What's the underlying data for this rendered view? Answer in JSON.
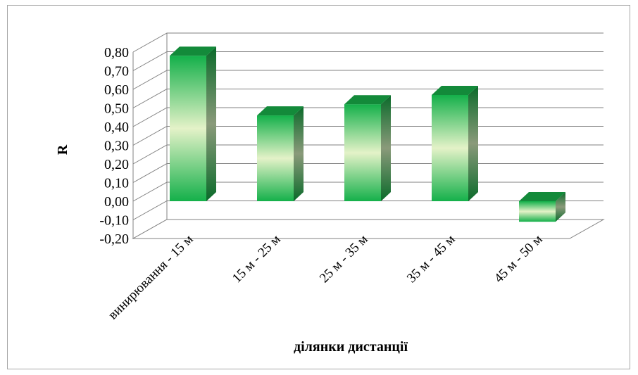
{
  "chart_data": {
    "type": "bar",
    "style": "3d-column",
    "categories": [
      "винирювання - 15 м",
      "15 м - 25 м",
      "25 м - 35 м",
      "35 м - 45 м",
      "45 м - 50  м"
    ],
    "values": [
      0.78,
      0.46,
      0.52,
      0.57,
      -0.11
    ],
    "title": "",
    "xlabel": "ділянки дистанції",
    "ylabel": "R",
    "ylim": [
      -0.2,
      0.8
    ],
    "ytick_step": 0.1,
    "yticks": [
      "-0,20",
      "-0,10",
      "0,00",
      "0,10",
      "0,20",
      "0,30",
      "0,40",
      "0,50",
      "0,60",
      "0,70",
      "0,80"
    ],
    "grid": true,
    "legend": "none",
    "colors": {
      "bar_dark": "#14b04a",
      "bar_light": "#e4f2c8",
      "bar_side": "#0a6a2a",
      "bar_top": "#138a3a",
      "grid": "#808080"
    }
  }
}
